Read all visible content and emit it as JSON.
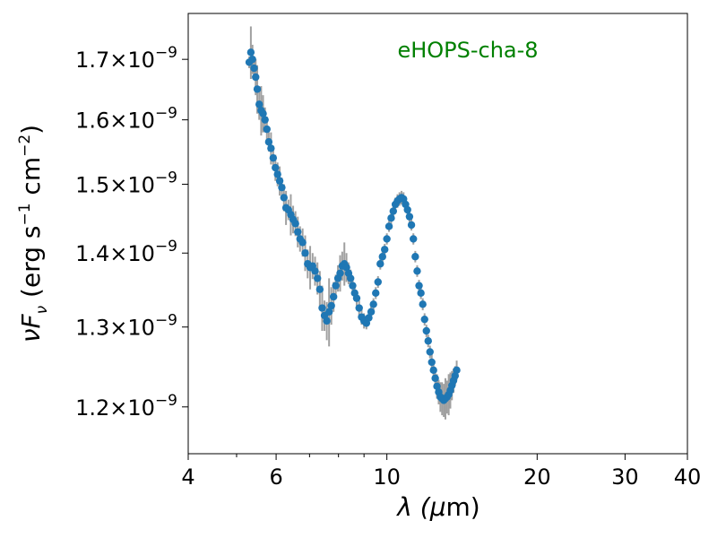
{
  "chart_data": {
    "type": "scatter",
    "annotation": "eHOPS-cha-8",
    "annotation_color": "#008000",
    "marker_color": "#1f77b4",
    "errorbar_color": "#a0a0a0",
    "xlabel": {
      "base": "λ (",
      "sym": "μ",
      "unit": "m)"
    },
    "ylabel": {
      "parts": [
        "νF",
        "ν",
        " (erg s",
        "−1",
        " cm",
        "−2",
        ")"
      ]
    },
    "x_scale": "log",
    "y_scale": "log",
    "xlim": [
      4,
      40
    ],
    "ylim": [
      1.145e-09,
      1.78e-09
    ],
    "grid": false,
    "x_ticks": [
      {
        "value": 4,
        "label": "4"
      },
      {
        "value": 6,
        "label": "6"
      },
      {
        "value": 10,
        "label": "10"
      },
      {
        "value": 20,
        "label": "20"
      },
      {
        "value": 30,
        "label": "30"
      },
      {
        "value": 40,
        "label": "40"
      }
    ],
    "x_minor_ticks": [
      5,
      7,
      8,
      9
    ],
    "y_ticks": [
      {
        "value": 1.2e-09,
        "mantissa": "1.2",
        "exp": "−9"
      },
      {
        "value": 1.3e-09,
        "mantissa": "1.3",
        "exp": "−9"
      },
      {
        "value": 1.4e-09,
        "mantissa": "1.4",
        "exp": "−9"
      },
      {
        "value": 1.5e-09,
        "mantissa": "1.5",
        "exp": "−9"
      },
      {
        "value": 1.6e-09,
        "mantissa": "1.6",
        "exp": "−9"
      },
      {
        "value": 1.7e-09,
        "mantissa": "1.7",
        "exp": "−9"
      }
    ],
    "series": [
      {
        "x": [
          5.3,
          5.34,
          5.38,
          5.42,
          5.46,
          5.5,
          5.55,
          5.6,
          5.65,
          5.7,
          5.75,
          5.8,
          5.86,
          5.92,
          5.98,
          6.04,
          6.1,
          6.16,
          6.22,
          6.28,
          6.35,
          6.42,
          6.49,
          6.56,
          6.63,
          6.7,
          6.78,
          6.86,
          6.94,
          7.02,
          7.1,
          7.18,
          7.26,
          7.34,
          7.42,
          7.5,
          7.58,
          7.66,
          7.74,
          7.82,
          7.9,
          7.98,
          8.06,
          8.14,
          8.22,
          8.3,
          8.38,
          8.46,
          8.54,
          8.62,
          8.7,
          8.8,
          8.9,
          9.0,
          9.1,
          9.2,
          9.3,
          9.4,
          9.5,
          9.6,
          9.7,
          9.8,
          9.9,
          10.0,
          10.1,
          10.2,
          10.3,
          10.4,
          10.5,
          10.6,
          10.7,
          10.8,
          10.9,
          11.0,
          11.1,
          11.2,
          11.3,
          11.4,
          11.5,
          11.6,
          11.7,
          11.8,
          11.9,
          12.0,
          12.1,
          12.2,
          12.3,
          12.4,
          12.5,
          12.6,
          12.7,
          12.8,
          12.9,
          13.0,
          13.1,
          13.2,
          13.3,
          13.4,
          13.5,
          13.6,
          13.7,
          13.8
        ],
        "y": [
          1.695e-09,
          1.712e-09,
          1.7e-09,
          1.685e-09,
          1.67e-09,
          1.65e-09,
          1.625e-09,
          1.615e-09,
          1.61e-09,
          1.6e-09,
          1.585e-09,
          1.565e-09,
          1.555e-09,
          1.54e-09,
          1.525e-09,
          1.515e-09,
          1.505e-09,
          1.495e-09,
          1.48e-09,
          1.465e-09,
          1.462e-09,
          1.455e-09,
          1.448e-09,
          1.442e-09,
          1.43e-09,
          1.42e-09,
          1.415e-09,
          1.4e-09,
          1.385e-09,
          1.38e-09,
          1.382e-09,
          1.375e-09,
          1.365e-09,
          1.35e-09,
          1.325e-09,
          1.315e-09,
          1.308e-09,
          1.32e-09,
          1.328e-09,
          1.34e-09,
          1.355e-09,
          1.365e-09,
          1.372e-09,
          1.382e-09,
          1.385e-09,
          1.38e-09,
          1.372e-09,
          1.365e-09,
          1.355e-09,
          1.345e-09,
          1.338e-09,
          1.325e-09,
          1.313e-09,
          1.308e-09,
          1.305e-09,
          1.312e-09,
          1.32e-09,
          1.33e-09,
          1.345e-09,
          1.36e-09,
          1.385e-09,
          1.395e-09,
          1.405e-09,
          1.42e-09,
          1.438e-09,
          1.45e-09,
          1.46e-09,
          1.47e-09,
          1.475e-09,
          1.478e-09,
          1.48e-09,
          1.478e-09,
          1.47e-09,
          1.462e-09,
          1.452e-09,
          1.44e-09,
          1.42e-09,
          1.395e-09,
          1.375e-09,
          1.355e-09,
          1.345e-09,
          1.33e-09,
          1.31e-09,
          1.295e-09,
          1.282e-09,
          1.268e-09,
          1.255e-09,
          1.245e-09,
          1.235e-09,
          1.225e-09,
          1.218e-09,
          1.212e-09,
          1.21e-09,
          1.208e-09,
          1.21e-09,
          1.212e-09,
          1.215e-09,
          1.22e-09,
          1.226e-09,
          1.232e-09,
          1.238e-09,
          1.245e-09
        ],
        "yerr": [
          1e-11,
          4.5e-11,
          2.5e-11,
          2e-11,
          3e-11,
          4e-11,
          2.5e-11,
          4e-11,
          3e-11,
          2e-11,
          2e-11,
          1.5e-11,
          2.5e-11,
          1.5e-11,
          2e-11,
          1.8e-11,
          2.2e-11,
          1.5e-11,
          2e-11,
          2.5e-11,
          1.5e-11,
          3e-11,
          2e-11,
          1.8e-11,
          2.2e-11,
          1.8e-11,
          2e-11,
          2.5e-11,
          2e-11,
          3e-11,
          1.8e-11,
          2e-11,
          2.2e-11,
          2.5e-11,
          3e-11,
          2e-11,
          2.5e-11,
          4.5e-11,
          2.5e-11,
          2e-11,
          1.5e-11,
          1.8e-11,
          2.5e-11,
          2e-11,
          3e-11,
          2e-11,
          1.5e-11,
          1.2e-11,
          1.2e-11,
          1e-11,
          1e-11,
          1e-11,
          1e-11,
          1e-11,
          8e-12,
          8e-12,
          8e-12,
          8e-12,
          8e-12,
          8e-12,
          8e-12,
          8e-12,
          8e-12,
          8e-12,
          8e-12,
          1e-11,
          1e-11,
          1e-11,
          1e-11,
          1e-11,
          1e-11,
          1e-11,
          1e-11,
          8e-12,
          8e-12,
          8e-12,
          8e-12,
          8e-12,
          8e-12,
          8e-12,
          8e-12,
          8e-12,
          8e-12,
          8e-12,
          8e-12,
          8e-12,
          1e-11,
          1e-11,
          1.2e-11,
          1.5e-11,
          1.5e-11,
          1.8e-11,
          2e-11,
          2e-11,
          2.5e-11,
          2e-11,
          2.5e-11,
          2.2e-11,
          1.8e-11,
          1.5e-11,
          1.2e-11,
          1.2e-11
        ]
      }
    ]
  }
}
